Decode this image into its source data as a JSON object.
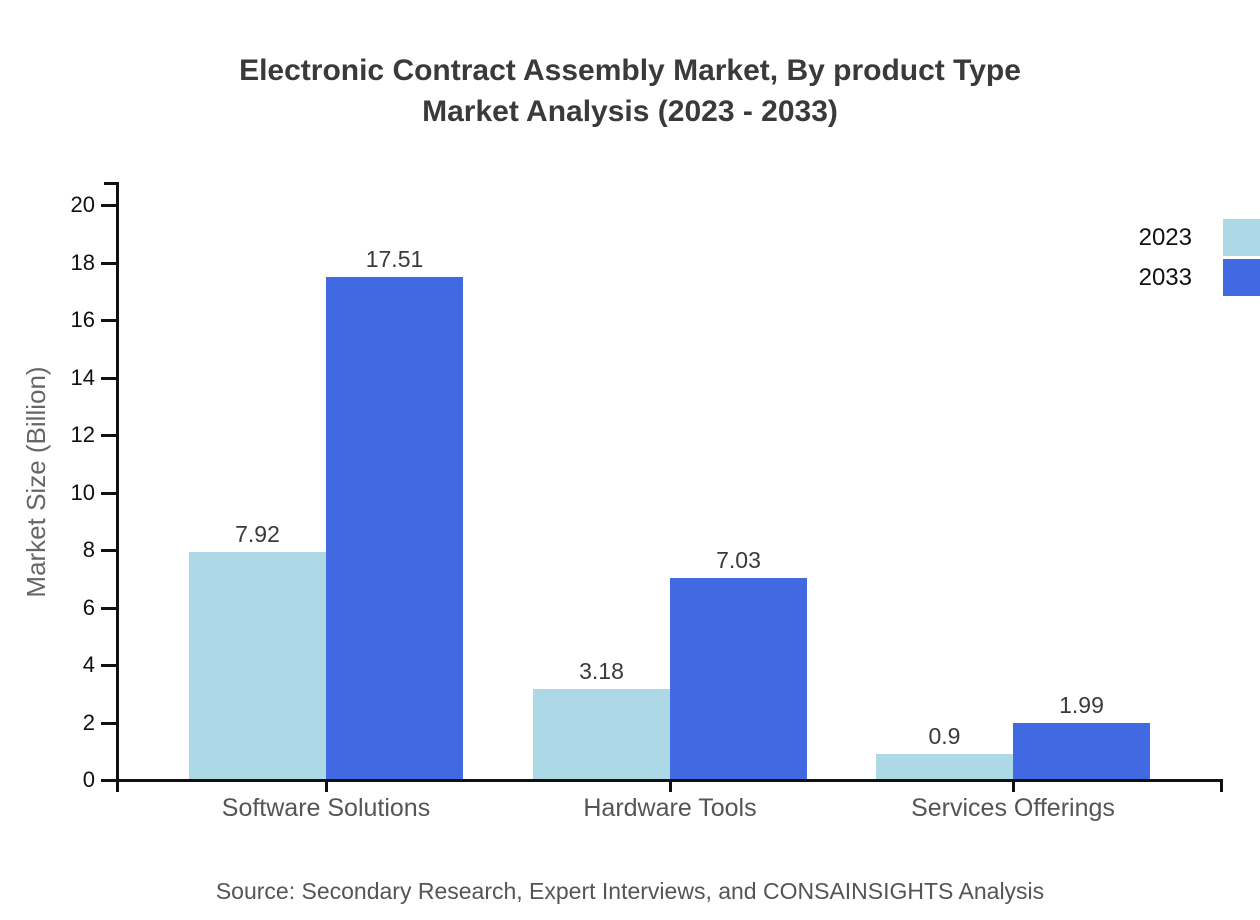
{
  "title": {
    "line1": "Electronic Contract Assembly Market, By product Type",
    "line2": "Market Analysis (2023 - 2033)"
  },
  "source_text": "Source: Secondary Research, Expert Interviews, and CONSAINSIGHTS Analysis",
  "chart_data": {
    "type": "bar",
    "categories": [
      "Software Solutions",
      "Hardware Tools",
      "Services Offerings"
    ],
    "series": [
      {
        "name": "2023",
        "color": "#add8e6",
        "values": [
          7.92,
          3.18,
          0.9
        ]
      },
      {
        "name": "2033",
        "color": "#4169e1",
        "values": [
          17.51,
          7.03,
          1.99
        ]
      }
    ],
    "title": "Electronic Contract Assembly Market, By product Type Market Analysis (2023 - 2033)",
    "xlabel": "",
    "ylabel": "Market Size (Billion)",
    "ylim": [
      0,
      20
    ],
    "ytick_step": 2,
    "grid": false,
    "legend_position": "upper right",
    "value_labels": true
  },
  "colors": {
    "series_2023": "#add8e6",
    "series_2033": "#4169e1",
    "axis": "#111111",
    "title_text": "#3a3a3a",
    "muted_text": "#555555"
  }
}
